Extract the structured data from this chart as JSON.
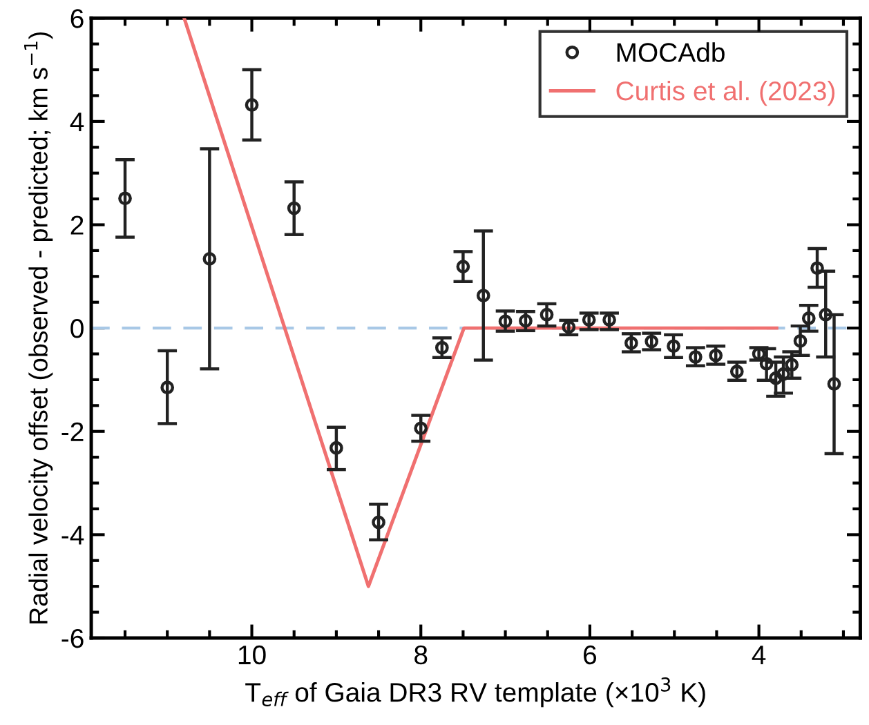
{
  "chart_data": {
    "type": "scatter",
    "xlabel": "T$_{eff}$ of Gaia DR3 RV template (×10$^{3}$ K)",
    "ylabel": "Radial velocity offset (observed - predicted; km s$^{−1}$)",
    "xlim": [
      11.9,
      2.8
    ],
    "ylim": [
      -6,
      6
    ],
    "xticks": [
      {
        "value": 11.5,
        "label": null
      },
      {
        "value": 11,
        "label": null
      },
      {
        "value": 10.5,
        "label": null
      },
      10,
      {
        "value": 9.5,
        "label": null
      },
      {
        "value": 9,
        "label": null
      },
      {
        "value": 8.5,
        "label": null
      },
      8,
      {
        "value": 7.5,
        "label": null
      },
      {
        "value": 7,
        "label": null
      },
      {
        "value": 6.5,
        "label": null
      },
      6,
      {
        "value": 5.5,
        "label": null
      },
      {
        "value": 5,
        "label": null
      },
      {
        "value": 4.5,
        "label": null
      },
      4,
      {
        "value": 3.5,
        "label": null
      },
      {
        "value": 3,
        "label": null
      }
    ],
    "yticks": [
      -6,
      {
        "value": -5.5,
        "label": null
      },
      {
        "value": -5,
        "label": null
      },
      {
        "value": -4.5,
        "label": null
      },
      -4,
      {
        "value": -3.5,
        "label": null
      },
      {
        "value": -3,
        "label": null
      },
      {
        "value": -2.5,
        "label": null
      },
      -2,
      {
        "value": -1.5,
        "label": null
      },
      {
        "value": -1,
        "label": null
      },
      {
        "value": -0.5,
        "label": null
      },
      0,
      {
        "value": 0.5,
        "label": null
      },
      {
        "value": 1,
        "label": null
      },
      {
        "value": 1.5,
        "label": null
      },
      2,
      {
        "value": 2.5,
        "label": null
      },
      {
        "value": 3,
        "label": null
      },
      {
        "value": 3.5,
        "label": null
      },
      4,
      {
        "value": 4.5,
        "label": null
      },
      {
        "value": 5,
        "label": null
      },
      {
        "value": 5.5,
        "label": null
      },
      6
    ],
    "grid": false,
    "legend": "top right",
    "ref_lines": [
      {
        "axis": "y",
        "value": 0,
        "label": null,
        "color": "#a8c8e6",
        "line_style": "dashed"
      }
    ],
    "series": [
      {
        "name": "MOCAdb",
        "color": "#222222",
        "marker": "circle",
        "x": [
          11.5,
          11.0,
          10.5,
          10.0,
          9.5,
          9.0,
          8.5,
          8.0,
          7.75,
          7.5,
          7.26,
          7.0,
          6.76,
          6.51,
          6.25,
          6.01,
          5.77,
          5.51,
          5.27,
          5.01,
          4.75,
          4.51,
          4.26,
          4.0,
          3.91,
          3.8,
          3.71,
          3.61,
          3.51,
          3.41,
          3.31,
          3.21,
          3.11
        ],
        "values": [
          2.51,
          -1.15,
          1.34,
          4.32,
          2.32,
          -2.32,
          -3.76,
          -1.94,
          -0.38,
          1.19,
          0.63,
          0.13,
          0.14,
          0.26,
          0.02,
          0.16,
          0.16,
          -0.29,
          -0.26,
          -0.35,
          -0.56,
          -0.53,
          -0.84,
          -0.5,
          -0.69,
          -0.97,
          -0.89,
          -0.71,
          -0.25,
          0.19,
          1.16,
          0.26,
          -1.08
        ],
        "errors": [
          [
            1.76,
            3.26
          ],
          [
            -1.85,
            -0.44
          ],
          [
            -0.79,
            3.47
          ],
          [
            3.64,
            5.0
          ],
          [
            1.81,
            2.83
          ],
          [
            -2.74,
            -1.92
          ],
          [
            -4.1,
            -3.41
          ],
          [
            -2.19,
            -1.69
          ],
          [
            -0.57,
            -0.19
          ],
          [
            0.9,
            1.48
          ],
          [
            -0.62,
            1.88
          ],
          [
            -0.06,
            0.33
          ],
          [
            -0.05,
            0.32
          ],
          [
            0.04,
            0.47
          ],
          [
            -0.13,
            0.15
          ],
          [
            -0.03,
            0.29
          ],
          [
            -0.03,
            0.29
          ],
          [
            -0.46,
            -0.11
          ],
          [
            -0.42,
            -0.1
          ],
          [
            -0.57,
            -0.13
          ],
          [
            -0.73,
            -0.38
          ],
          [
            -0.7,
            -0.35
          ],
          [
            -1.01,
            -0.66
          ],
          [
            -0.62,
            -0.38
          ],
          [
            -1.01,
            -0.4
          ],
          [
            -1.32,
            -0.66
          ],
          [
            -1.26,
            -0.56
          ],
          [
            -0.97,
            -0.46
          ],
          [
            -0.53,
            0.04
          ],
          [
            -0.06,
            0.44
          ],
          [
            0.79,
            1.54
          ],
          [
            -0.56,
            1.1
          ],
          [
            -2.43,
            0.26
          ]
        ]
      },
      {
        "name": "Curtis et al. (2023)",
        "type": "line",
        "color": "#f07070",
        "line_style": "solid",
        "x": [
          10.8,
          8.62,
          7.49,
          3.79
        ],
        "values": [
          6,
          -5,
          0,
          0
        ]
      }
    ]
  }
}
